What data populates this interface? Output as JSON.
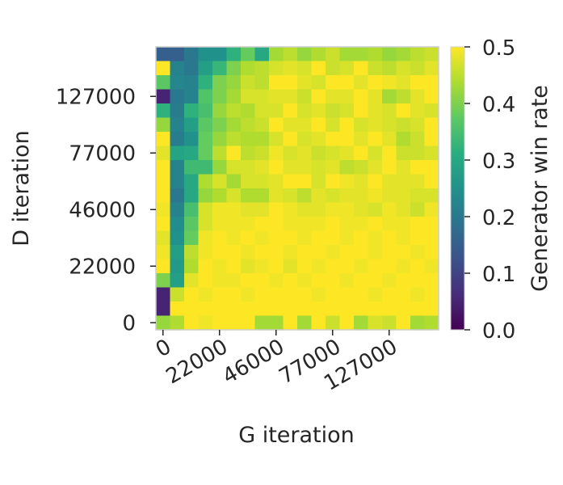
{
  "chart_data": {
    "type": "heatmap",
    "title": "",
    "xlabel": "G iteration",
    "ylabel": "D iteration",
    "colorbar_label": "Generator win rate",
    "colormap": "viridis",
    "value_range": [
      0.0,
      0.5
    ],
    "colorbar_ticks": [
      "0.0",
      "0.1",
      "0.2",
      "0.3",
      "0.4",
      "0.5"
    ],
    "x_tick_labels": [
      "0",
      "22000",
      "46000",
      "77000",
      "127000"
    ],
    "y_tick_labels": [
      "0",
      "22000",
      "46000",
      "77000",
      "127000"
    ],
    "grid_size": [
      20,
      20
    ],
    "cells_top_to_bottom": [
      [
        0.15,
        0.15,
        0.2,
        0.25,
        0.25,
        0.32,
        0.38,
        0.3,
        0.43,
        0.45,
        0.42,
        0.44,
        0.46,
        0.43,
        0.43,
        0.44,
        0.42,
        0.43,
        0.45,
        0.46
      ],
      [
        0.5,
        0.22,
        0.2,
        0.28,
        0.33,
        0.4,
        0.44,
        0.45,
        0.47,
        0.48,
        0.47,
        0.5,
        0.46,
        0.47,
        0.5,
        0.46,
        0.45,
        0.47,
        0.46,
        0.48
      ],
      [
        0.37,
        0.23,
        0.22,
        0.32,
        0.4,
        0.42,
        0.46,
        0.45,
        0.5,
        0.5,
        0.48,
        0.47,
        0.5,
        0.5,
        0.48,
        0.5,
        0.49,
        0.48,
        0.5,
        0.5
      ],
      [
        0.05,
        0.2,
        0.22,
        0.36,
        0.4,
        0.43,
        0.47,
        0.47,
        0.48,
        0.48,
        0.46,
        0.5,
        0.48,
        0.48,
        0.5,
        0.48,
        0.43,
        0.45,
        0.48,
        0.5
      ],
      [
        0.32,
        0.21,
        0.32,
        0.35,
        0.42,
        0.45,
        0.44,
        0.47,
        0.47,
        0.5,
        0.47,
        0.48,
        0.46,
        0.47,
        0.5,
        0.48,
        0.47,
        0.5,
        0.48,
        0.47
      ],
      [
        0.42,
        0.22,
        0.28,
        0.37,
        0.4,
        0.43,
        0.45,
        0.46,
        0.5,
        0.48,
        0.48,
        0.5,
        0.47,
        0.5,
        0.47,
        0.48,
        0.47,
        0.46,
        0.47,
        0.5
      ],
      [
        0.5,
        0.21,
        0.25,
        0.38,
        0.42,
        0.45,
        0.44,
        0.44,
        0.47,
        0.5,
        0.47,
        0.48,
        0.5,
        0.5,
        0.48,
        0.5,
        0.48,
        0.44,
        0.46,
        0.5
      ],
      [
        0.48,
        0.29,
        0.3,
        0.38,
        0.45,
        0.5,
        0.45,
        0.46,
        0.49,
        0.47,
        0.48,
        0.46,
        0.47,
        0.48,
        0.5,
        0.47,
        0.5,
        0.46,
        0.46,
        0.47
      ],
      [
        0.5,
        0.22,
        0.34,
        0.34,
        0.42,
        0.47,
        0.47,
        0.48,
        0.5,
        0.48,
        0.48,
        0.47,
        0.48,
        0.45,
        0.46,
        0.48,
        0.5,
        0.48,
        0.5,
        0.5
      ],
      [
        0.5,
        0.22,
        0.3,
        0.44,
        0.47,
        0.43,
        0.47,
        0.47,
        0.48,
        0.5,
        0.5,
        0.47,
        0.5,
        0.49,
        0.48,
        0.5,
        0.48,
        0.48,
        0.48,
        0.5
      ],
      [
        0.5,
        0.2,
        0.3,
        0.42,
        0.44,
        0.47,
        0.44,
        0.44,
        0.48,
        0.47,
        0.45,
        0.48,
        0.47,
        0.48,
        0.48,
        0.49,
        0.48,
        0.48,
        0.47,
        0.47
      ],
      [
        0.49,
        0.22,
        0.35,
        0.47,
        0.49,
        0.49,
        0.48,
        0.48,
        0.5,
        0.49,
        0.48,
        0.48,
        0.49,
        0.49,
        0.48,
        0.47,
        0.49,
        0.48,
        0.46,
        0.49
      ],
      [
        0.5,
        0.24,
        0.37,
        0.47,
        0.49,
        0.49,
        0.49,
        0.5,
        0.5,
        0.49,
        0.49,
        0.49,
        0.5,
        0.49,
        0.49,
        0.5,
        0.49,
        0.49,
        0.5,
        0.5
      ],
      [
        0.48,
        0.25,
        0.38,
        0.49,
        0.5,
        0.49,
        0.5,
        0.49,
        0.5,
        0.5,
        0.49,
        0.5,
        0.5,
        0.49,
        0.5,
        0.49,
        0.5,
        0.49,
        0.5,
        0.5
      ],
      [
        0.49,
        0.28,
        0.45,
        0.49,
        0.5,
        0.5,
        0.49,
        0.5,
        0.5,
        0.49,
        0.5,
        0.5,
        0.49,
        0.5,
        0.5,
        0.49,
        0.5,
        0.5,
        0.49,
        0.5
      ],
      [
        0.5,
        0.27,
        0.44,
        0.5,
        0.49,
        0.5,
        0.48,
        0.49,
        0.5,
        0.48,
        0.5,
        0.49,
        0.5,
        0.5,
        0.49,
        0.5,
        0.5,
        0.49,
        0.5,
        0.49
      ],
      [
        0.4,
        0.28,
        0.48,
        0.5,
        0.49,
        0.49,
        0.5,
        0.5,
        0.49,
        0.5,
        0.49,
        0.5,
        0.5,
        0.49,
        0.5,
        0.5,
        0.49,
        0.5,
        0.5,
        0.5
      ],
      [
        0.05,
        0.46,
        0.5,
        0.49,
        0.5,
        0.5,
        0.49,
        0.5,
        0.5,
        0.5,
        0.5,
        0.49,
        0.5,
        0.5,
        0.5,
        0.49,
        0.5,
        0.5,
        0.49,
        0.5
      ],
      [
        0.05,
        0.5,
        0.5,
        0.5,
        0.5,
        0.5,
        0.5,
        0.5,
        0.5,
        0.5,
        0.5,
        0.5,
        0.5,
        0.5,
        0.5,
        0.5,
        0.5,
        0.5,
        0.5,
        0.5
      ],
      [
        0.42,
        0.44,
        0.5,
        0.49,
        0.5,
        0.5,
        0.5,
        0.43,
        0.43,
        0.5,
        0.43,
        0.5,
        0.46,
        0.5,
        0.43,
        0.47,
        0.46,
        0.5,
        0.43,
        0.44
      ]
    ]
  }
}
